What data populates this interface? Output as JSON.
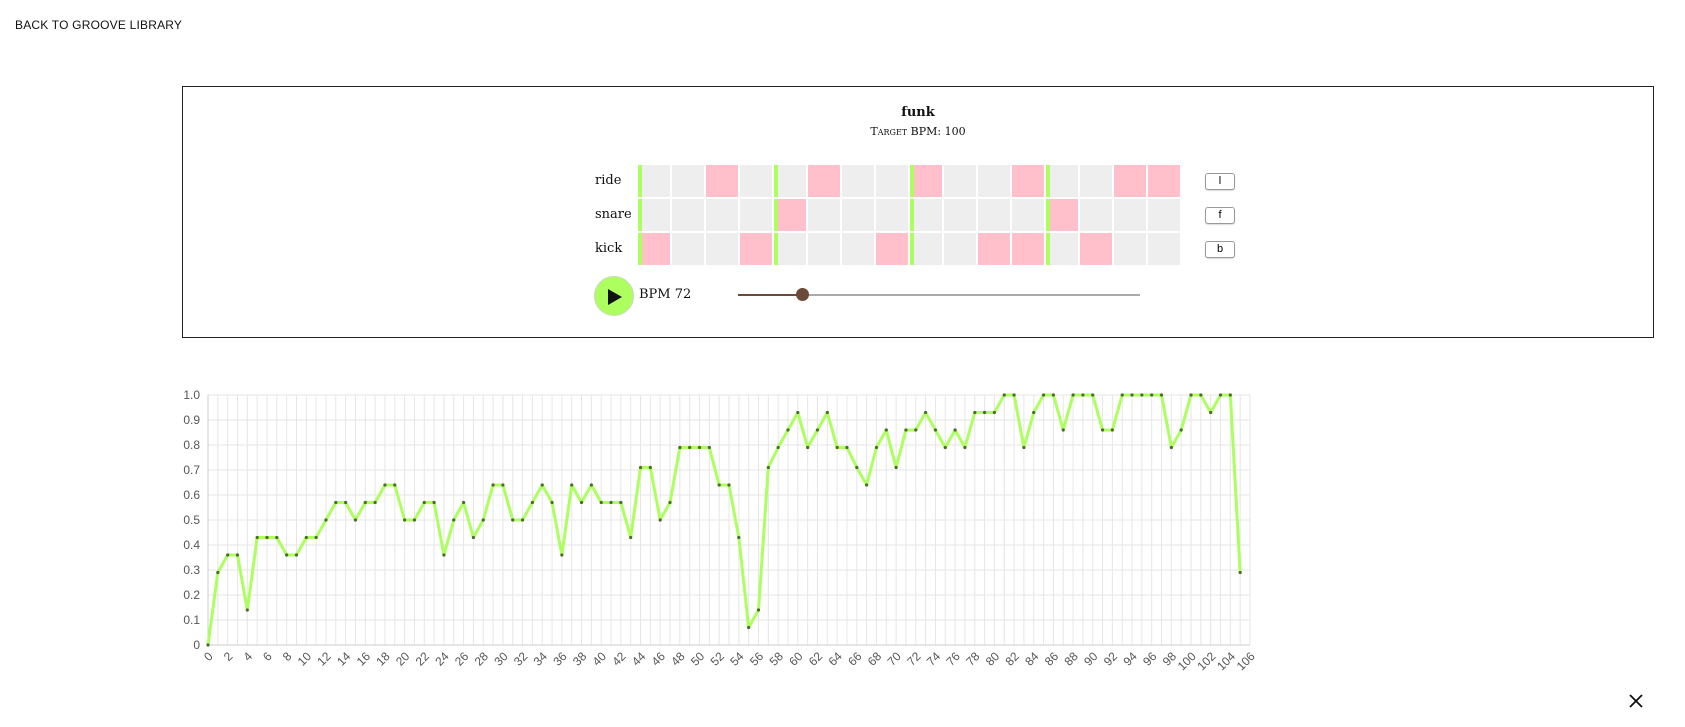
{
  "nav": {
    "back_label": "BACK TO GROOVE LIBRARY"
  },
  "groove": {
    "name": "funk",
    "target_bpm_text": "Target BPM: 100",
    "rows": [
      {
        "label": "ride",
        "key": "l",
        "steps": [
          0,
          0,
          1,
          0,
          0,
          1,
          0,
          0,
          1,
          0,
          0,
          1,
          0,
          0,
          1,
          1
        ]
      },
      {
        "label": "snare",
        "key": "f",
        "steps": [
          0,
          0,
          0,
          0,
          1,
          0,
          0,
          0,
          0,
          0,
          0,
          0,
          1,
          0,
          0,
          0
        ]
      },
      {
        "label": "kick",
        "key": "b",
        "steps": [
          1,
          0,
          0,
          1,
          0,
          0,
          0,
          1,
          0,
          0,
          1,
          1,
          0,
          1,
          0,
          0
        ]
      }
    ],
    "beat_marker_steps": [
      0,
      4,
      8,
      12
    ]
  },
  "transport": {
    "play_icon": "play-icon",
    "bpm_text": "BPM 72",
    "bpm": 72,
    "bpm_min": 40,
    "bpm_max": 240
  },
  "colors": {
    "accent_green": "#adff5f",
    "step_on": "#ffc0cb",
    "step_off": "#eeeeee",
    "slider": "#6b4a3a"
  },
  "chart_data": {
    "type": "line",
    "title": "",
    "xlabel": "",
    "ylabel": "",
    "xlim": [
      0,
      106
    ],
    "ylim": [
      0,
      1.0
    ],
    "x_ticks": [
      0,
      2,
      4,
      6,
      8,
      10,
      12,
      14,
      16,
      18,
      20,
      22,
      24,
      26,
      28,
      30,
      32,
      34,
      36,
      38,
      40,
      42,
      44,
      46,
      48,
      50,
      52,
      54,
      56,
      58,
      60,
      62,
      64,
      66,
      68,
      70,
      72,
      74,
      76,
      78,
      80,
      82,
      84,
      86,
      88,
      90,
      92,
      94,
      96,
      98,
      100,
      102,
      104,
      106
    ],
    "y_ticks": [
      "0",
      "0.1",
      "0.2",
      "0.3",
      "0.4",
      "0.5",
      "0.6",
      "0.7",
      "0.8",
      "0.9",
      "1.0"
    ],
    "grid": true,
    "series": [
      {
        "color": "#adff5f",
        "values": [
          0,
          0.29,
          0.36,
          0.36,
          0.14,
          0.43,
          0.43,
          0.43,
          0.36,
          0.36,
          0.43,
          0.43,
          0.5,
          0.57,
          0.57,
          0.5,
          0.57,
          0.57,
          0.64,
          0.64,
          0.5,
          0.5,
          0.57,
          0.57,
          0.36,
          0.5,
          0.57,
          0.43,
          0.5,
          0.64,
          0.64,
          0.5,
          0.5,
          0.57,
          0.64,
          0.57,
          0.36,
          0.64,
          0.57,
          0.64,
          0.57,
          0.57,
          0.57,
          0.43,
          0.71,
          0.71,
          0.5,
          0.57,
          0.79,
          0.79,
          0.79,
          0.79,
          0.64,
          0.64,
          0.43,
          0.07,
          0.14,
          0.71,
          0.79,
          0.86,
          0.93,
          0.79,
          0.86,
          0.93,
          0.79,
          0.79,
          0.71,
          0.64,
          0.79,
          0.86,
          0.71,
          0.86,
          0.86,
          0.93,
          0.86,
          0.79,
          0.86,
          0.79,
          0.93,
          0.93,
          0.93,
          1.0,
          1.0,
          0.79,
          0.93,
          1.0,
          1.0,
          0.86,
          1.0,
          1.0,
          1.0,
          0.86,
          0.86,
          1.0,
          1.0,
          1.0,
          1.0,
          1.0,
          0.79,
          0.86,
          1.0,
          1.0,
          0.93,
          1.0,
          1.0,
          0.29
        ]
      }
    ]
  },
  "close": {
    "icon": "close-icon"
  }
}
